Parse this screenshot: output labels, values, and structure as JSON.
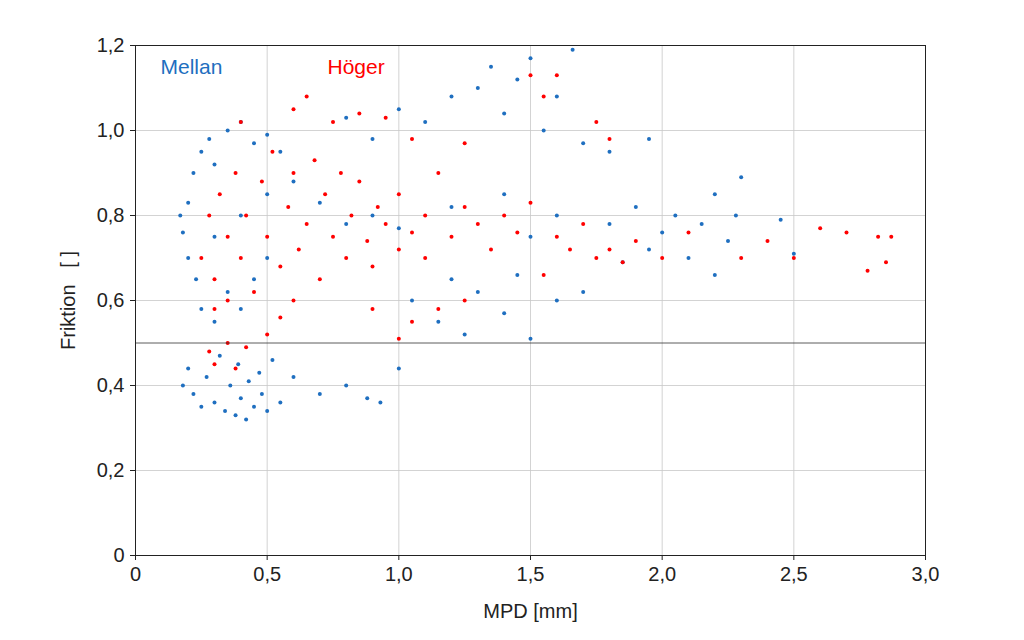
{
  "chart_data": {
    "type": "scatter",
    "x_label": "MPD [mm]",
    "y_label": "Friktion   [ ]",
    "xlim": [
      0,
      3
    ],
    "ylim": [
      0,
      1.2
    ],
    "xticks": [
      0,
      {
        "value": 0.5,
        "label": "0,5"
      },
      {
        "value": 1,
        "label": "1,0"
      },
      {
        "value": 1.5,
        "label": "1,5"
      },
      {
        "value": 2,
        "label": "2,0"
      },
      {
        "value": 2.5,
        "label": "2,5"
      },
      {
        "value": 3,
        "label": "3,0"
      }
    ],
    "yticks": [
      0,
      {
        "value": 0.2,
        "label": "0,2"
      },
      {
        "value": 0.4,
        "label": "0,4"
      },
      {
        "value": 0.6,
        "label": "0,6"
      },
      {
        "value": 0.8,
        "label": "0,8"
      },
      {
        "value": 1,
        "label": "1,0"
      },
      {
        "value": 1.2,
        "label": "1,2"
      }
    ],
    "grid": true,
    "legend": "upper left",
    "hline": 0.5,
    "series": [
      {
        "name": "Mellan",
        "color": "#1f6fc0",
        "marker": "dot",
        "x": [
          0.18,
          0.2,
          0.22,
          0.25,
          0.27,
          0.3,
          0.32,
          0.34,
          0.36,
          0.38,
          0.39,
          0.4,
          0.42,
          0.43,
          0.45,
          0.47,
          0.48,
          0.5,
          0.52,
          0.55,
          0.6,
          0.7,
          0.8,
          0.88,
          0.93,
          1.0,
          0.17,
          0.18,
          0.2,
          0.2,
          0.22,
          0.23,
          0.25,
          0.25,
          0.28,
          0.3,
          0.3,
          0.35,
          0.4,
          0.45,
          0.5,
          0.55,
          0.35,
          0.4,
          0.8,
          0.9,
          1.0,
          1.1,
          1.2,
          1.3,
          1.35,
          1.4,
          1.45,
          1.5,
          1.55,
          1.6,
          1.66,
          1.7,
          1.8,
          1.95,
          1.05,
          1.15,
          1.25,
          1.3,
          1.4,
          1.5,
          1.6,
          1.7,
          1.2,
          1.45,
          1.8,
          1.9,
          1.95,
          2.0,
          2.05,
          2.1,
          2.15,
          2.2,
          2.25,
          2.28,
          2.3,
          2.45,
          2.5,
          2.2,
          1.85,
          0.3,
          0.4,
          0.5,
          0.6,
          0.7,
          0.5,
          0.45,
          0.8,
          0.9,
          1.0,
          1.2,
          1.4,
          1.6,
          1.5
        ],
        "values": [
          0.4,
          0.44,
          0.38,
          0.35,
          0.42,
          0.36,
          0.47,
          0.34,
          0.4,
          0.33,
          0.45,
          0.37,
          0.32,
          0.41,
          0.35,
          0.43,
          0.38,
          0.34,
          0.46,
          0.36,
          0.42,
          0.38,
          0.4,
          0.37,
          0.36,
          0.44,
          0.8,
          0.76,
          0.83,
          0.7,
          0.9,
          0.65,
          0.95,
          0.58,
          0.98,
          0.55,
          0.92,
          1.0,
          1.02,
          0.97,
          0.99,
          0.95,
          0.62,
          0.58,
          1.03,
          0.98,
          1.05,
          1.02,
          1.08,
          1.1,
          1.15,
          1.04,
          1.12,
          1.17,
          1.0,
          1.08,
          1.19,
          0.97,
          0.95,
          0.98,
          0.6,
          0.55,
          0.52,
          0.62,
          0.57,
          0.51,
          0.6,
          0.62,
          0.65,
          0.66,
          0.78,
          0.82,
          0.72,
          0.76,
          0.8,
          0.7,
          0.78,
          0.85,
          0.74,
          0.8,
          0.89,
          0.79,
          0.71,
          0.66,
          0.69,
          0.75,
          0.8,
          0.85,
          0.88,
          0.83,
          0.7,
          0.65,
          0.78,
          0.8,
          0.77,
          0.82,
          0.85,
          0.8,
          0.75
        ]
      },
      {
        "name": "Höger",
        "color": "#ff0000",
        "marker": "dot",
        "x": [
          0.25,
          0.28,
          0.3,
          0.32,
          0.35,
          0.38,
          0.4,
          0.42,
          0.45,
          0.48,
          0.5,
          0.52,
          0.55,
          0.58,
          0.6,
          0.62,
          0.65,
          0.68,
          0.7,
          0.72,
          0.75,
          0.78,
          0.8,
          0.82,
          0.85,
          0.88,
          0.9,
          0.92,
          0.95,
          1.0,
          1.0,
          1.05,
          1.1,
          1.1,
          1.15,
          1.2,
          1.25,
          1.3,
          1.35,
          1.4,
          1.45,
          1.5,
          0.6,
          0.35,
          0.3,
          0.4,
          0.6,
          0.65,
          0.75,
          0.85,
          0.95,
          1.05,
          1.25,
          1.5,
          1.55,
          1.6,
          1.75,
          1.8,
          0.28,
          0.3,
          0.35,
          0.38,
          0.42,
          0.5,
          0.55,
          1.0,
          1.05,
          1.15,
          1.25,
          0.9,
          1.6,
          1.65,
          1.7,
          1.75,
          1.8,
          1.85,
          1.9,
          2.0,
          2.1,
          2.3,
          2.4,
          2.5,
          2.6,
          2.7,
          2.78,
          2.82,
          2.87,
          2.85,
          1.55
        ],
        "values": [
          0.7,
          0.8,
          0.65,
          0.85,
          0.75,
          0.9,
          0.7,
          0.8,
          0.62,
          0.88,
          0.75,
          0.95,
          0.68,
          0.82,
          0.9,
          0.72,
          0.78,
          0.93,
          0.65,
          0.85,
          0.75,
          0.9,
          0.7,
          0.8,
          0.88,
          0.74,
          0.68,
          0.82,
          0.78,
          0.72,
          0.85,
          0.76,
          0.8,
          0.7,
          0.9,
          0.75,
          0.82,
          0.78,
          0.72,
          0.8,
          0.76,
          0.83,
          0.6,
          0.6,
          0.58,
          1.02,
          1.05,
          1.08,
          1.02,
          1.04,
          1.03,
          0.98,
          0.97,
          1.13,
          1.08,
          1.13,
          1.02,
          0.98,
          0.48,
          0.45,
          0.5,
          0.44,
          0.49,
          0.52,
          0.56,
          0.51,
          0.55,
          0.58,
          0.6,
          0.58,
          0.75,
          0.72,
          0.78,
          0.7,
          0.72,
          0.69,
          0.74,
          0.7,
          0.76,
          0.7,
          0.74,
          0.7,
          0.77,
          0.76,
          0.67,
          0.75,
          0.75,
          0.69,
          0.66
        ]
      }
    ]
  }
}
